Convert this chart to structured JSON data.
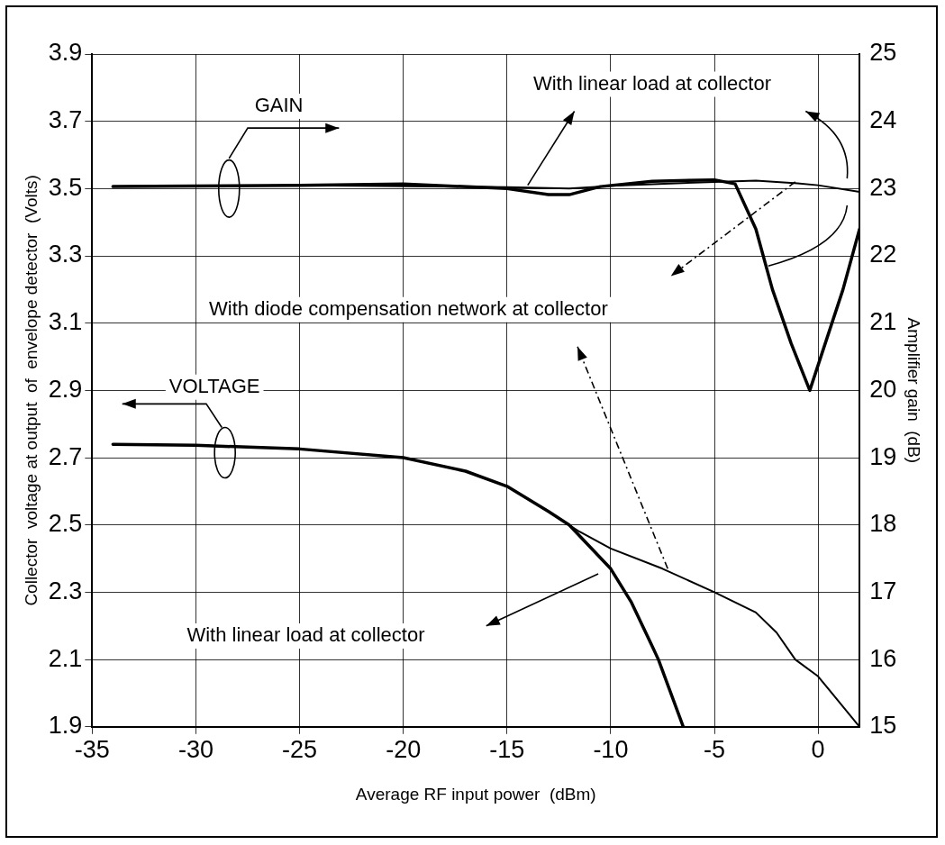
{
  "chart_data": {
    "type": "line",
    "xlabel": "Average RF input power  (dBm)",
    "ylabel": "Collector  voltage at output  of  envelope detector  (Volts)",
    "y2label": "Amplifier gain  (dB)",
    "xlim": [
      -35,
      2
    ],
    "xticks": [
      -35,
      -30,
      -25,
      -20,
      -15,
      -10,
      -5,
      0
    ],
    "ylim": [
      1.9,
      3.9
    ],
    "yticks": [
      1.9,
      2.1,
      2.3,
      2.5,
      2.7,
      2.9,
      3.1,
      3.3,
      3.5,
      3.7,
      3.9
    ],
    "y2lim": [
      15,
      25
    ],
    "y2ticks": [
      15,
      16,
      17,
      18,
      19,
      20,
      21,
      22,
      23,
      24,
      25
    ],
    "grid": true,
    "legend": false,
    "marker": "none",
    "line_style": "solid",
    "series": [
      {
        "color": "#000000",
        "axis": "y",
        "x": [
          -34,
          -30,
          -25,
          -20,
          -17,
          -15,
          -13,
          -12,
          -10,
          -9,
          -8,
          -7.7,
          -6.5
        ],
        "values": [
          2.74,
          2.737,
          2.726,
          2.7,
          2.66,
          2.615,
          2.54,
          2.5,
          2.37,
          2.27,
          2.14,
          2.1,
          1.9
        ]
      },
      {
        "color": "#000000",
        "axis": "y",
        "x": [
          -34,
          -30,
          -25,
          -20,
          -17,
          -15,
          -13,
          -12,
          -11.5,
          -10,
          -7.5,
          -5,
          -3,
          -2,
          -1.1,
          0,
          2
        ],
        "values": [
          2.74,
          2.737,
          2.726,
          2.7,
          2.66,
          2.615,
          2.54,
          2.5,
          2.48,
          2.43,
          2.37,
          2.3,
          2.24,
          2.18,
          2.1,
          2.05,
          1.9
        ]
      },
      {
        "color": "#000000",
        "axis": "y2",
        "x": [
          -34,
          -25,
          -20,
          -15,
          -13,
          -12,
          -10.5,
          -8,
          -5,
          -4,
          -3,
          -2.2,
          -1.3,
          -0.4,
          1.2,
          2
        ],
        "values": [
          23.03,
          23.05,
          23.07,
          23.0,
          22.91,
          22.91,
          23.03,
          23.11,
          23.13,
          23.07,
          22.4,
          21.5,
          20.7,
          20.0,
          21.5,
          22.4
        ]
      },
      {
        "color": "#000000",
        "axis": "y2",
        "x": [
          -34,
          -25,
          -15,
          -12,
          -10,
          -5,
          -3,
          -1,
          0,
          2
        ],
        "values": [
          23.03,
          23.05,
          23.02,
          23.0,
          23.04,
          23.1,
          23.12,
          23.08,
          23.05,
          22.95
        ]
      }
    ],
    "annotations": [
      "GAIN",
      {
        "text": "With linear load at collector",
        "x": -14,
        "y": 3.51
      },
      "With diode compensation network at collector",
      "VOLTAGE",
      "With linear load at collector"
    ]
  }
}
